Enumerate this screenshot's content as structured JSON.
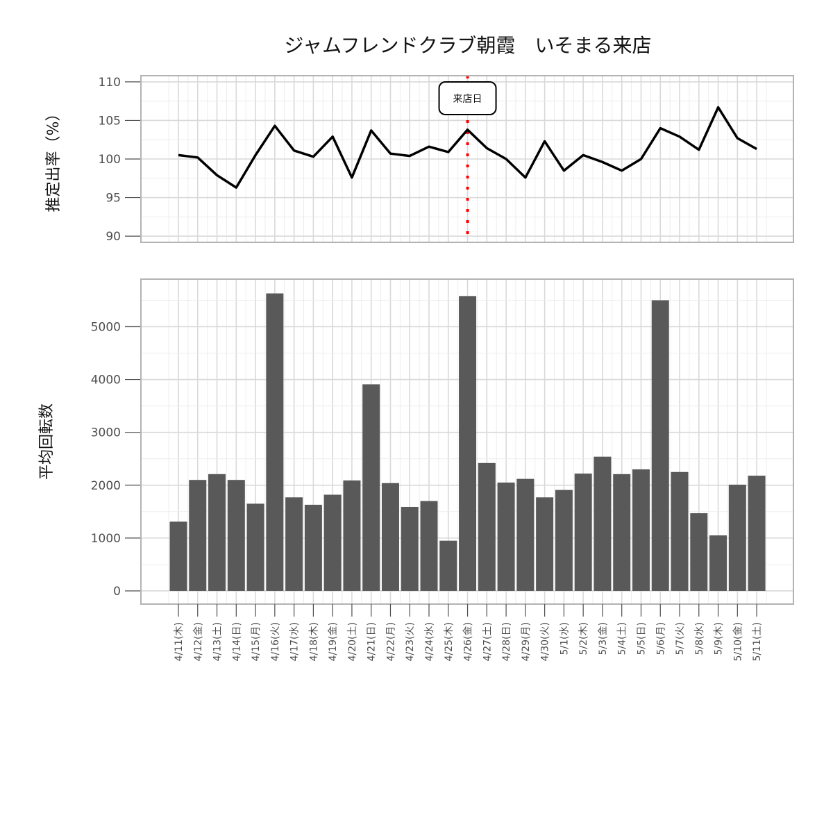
{
  "chart_data": [
    {
      "type": "line",
      "title": "ジャムフレンドクラブ朝霞　いそまる来店",
      "ylabel": "推定出率（%）",
      "ylim": [
        90,
        110
      ],
      "yticks": [
        90,
        95,
        100,
        105,
        110
      ],
      "grid": true,
      "x": [
        "4/11(木)",
        "4/12(金)",
        "4/13(土)",
        "4/14(日)",
        "4/15(月)",
        "4/16(火)",
        "4/17(水)",
        "4/18(木)",
        "4/19(金)",
        "4/20(土)",
        "4/21(日)",
        "4/22(月)",
        "4/23(火)",
        "4/24(水)",
        "4/25(木)",
        "4/26(金)",
        "4/27(土)",
        "4/28(日)",
        "4/29(月)",
        "4/30(火)",
        "5/1(水)",
        "5/2(木)",
        "5/3(金)",
        "5/4(土)",
        "5/5(日)",
        "5/6(月)",
        "5/7(火)",
        "5/8(水)",
        "5/9(木)",
        "5/10(金)",
        "5/11(土)"
      ],
      "values": [
        100.5,
        100.2,
        97.9,
        96.3,
        100.5,
        104.3,
        101.1,
        100.3,
        102.9,
        97.6,
        103.7,
        100.7,
        100.4,
        101.6,
        100.9,
        103.8,
        101.4,
        100.0,
        97.6,
        102.3,
        98.5,
        100.5,
        99.6,
        98.5,
        100.0,
        104.0,
        102.9,
        101.2,
        106.7,
        102.7,
        101.3
      ],
      "annotation": {
        "x": "4/26(金)",
        "label": "来店日",
        "line_color": "#ff0000",
        "line_style": "dotted"
      }
    },
    {
      "type": "bar",
      "ylabel": "平均回転数",
      "ylim": [
        -250,
        5900
      ],
      "yticks": [
        0,
        1000,
        2000,
        3000,
        4000,
        5000
      ],
      "grid": true,
      "categories": [
        "4/11(木)",
        "4/12(金)",
        "4/13(土)",
        "4/14(日)",
        "4/15(月)",
        "4/16(火)",
        "4/17(水)",
        "4/18(木)",
        "4/19(金)",
        "4/20(土)",
        "4/21(日)",
        "4/22(月)",
        "4/23(火)",
        "4/24(水)",
        "4/25(木)",
        "4/26(金)",
        "4/27(土)",
        "4/28(日)",
        "4/29(月)",
        "4/30(火)",
        "5/1(水)",
        "5/2(木)",
        "5/3(金)",
        "5/4(土)",
        "5/5(日)",
        "5/6(月)",
        "5/7(火)",
        "5/8(水)",
        "5/9(木)",
        "5/10(金)",
        "5/11(土)"
      ],
      "values": [
        1310,
        2100,
        2210,
        2100,
        1650,
        5630,
        1770,
        1630,
        1820,
        2090,
        3910,
        2040,
        1590,
        1700,
        950,
        5580,
        2420,
        2050,
        2120,
        1770,
        1910,
        2220,
        2540,
        2210,
        2300,
        5500,
        2250,
        1470,
        1050,
        2010,
        2180
      ],
      "bar_color": "#595959"
    }
  ],
  "colors": {
    "line": "#000000",
    "bar": "#595959",
    "grid_major": "#d9d9d9",
    "grid_minor": "#ebebeb",
    "panel_border": "#b3b3b3",
    "annotation": "#ff0000"
  }
}
